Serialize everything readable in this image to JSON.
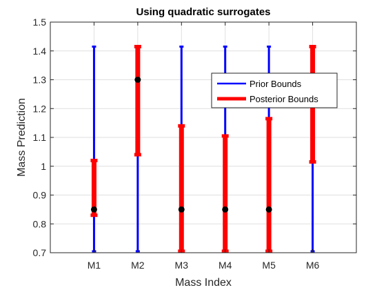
{
  "chart_data": {
    "type": "errorbar",
    "title": "Using quadratic surrogates",
    "xlabel": "Mass Index",
    "ylabel": "Mass Prediction",
    "categories": [
      "M1",
      "M2",
      "M3",
      "M4",
      "M5",
      "M6"
    ],
    "ylim": [
      0.7,
      1.5
    ],
    "yticks": [
      0.7,
      0.8,
      0.9,
      1,
      1.1,
      1.2,
      1.3,
      1.4,
      1.5
    ],
    "ytick_labels": [
      "0.7",
      "0.8",
      "0.9",
      "1",
      "1.1",
      "1.2",
      "1.3",
      "1.4",
      "1.5"
    ],
    "grid": true,
    "legend_position": "top-right",
    "series": [
      {
        "name": "Prior Bounds",
        "color": "#0000ff",
        "lower": [
          0.705,
          0.705,
          0.705,
          0.705,
          0.705,
          0.705
        ],
        "upper": [
          1.415,
          1.415,
          1.415,
          1.415,
          1.415,
          1.415
        ]
      },
      {
        "name": "Posterior Bounds",
        "color": "#ff0000",
        "lower": [
          0.83,
          1.04,
          0.705,
          0.705,
          0.705,
          1.015
        ],
        "upper": [
          1.02,
          1.415,
          1.14,
          1.105,
          1.165,
          1.415
        ]
      }
    ],
    "points": {
      "color": "#000000",
      "values": [
        0.85,
        1.3,
        0.85,
        0.85,
        0.85,
        null
      ]
    }
  }
}
